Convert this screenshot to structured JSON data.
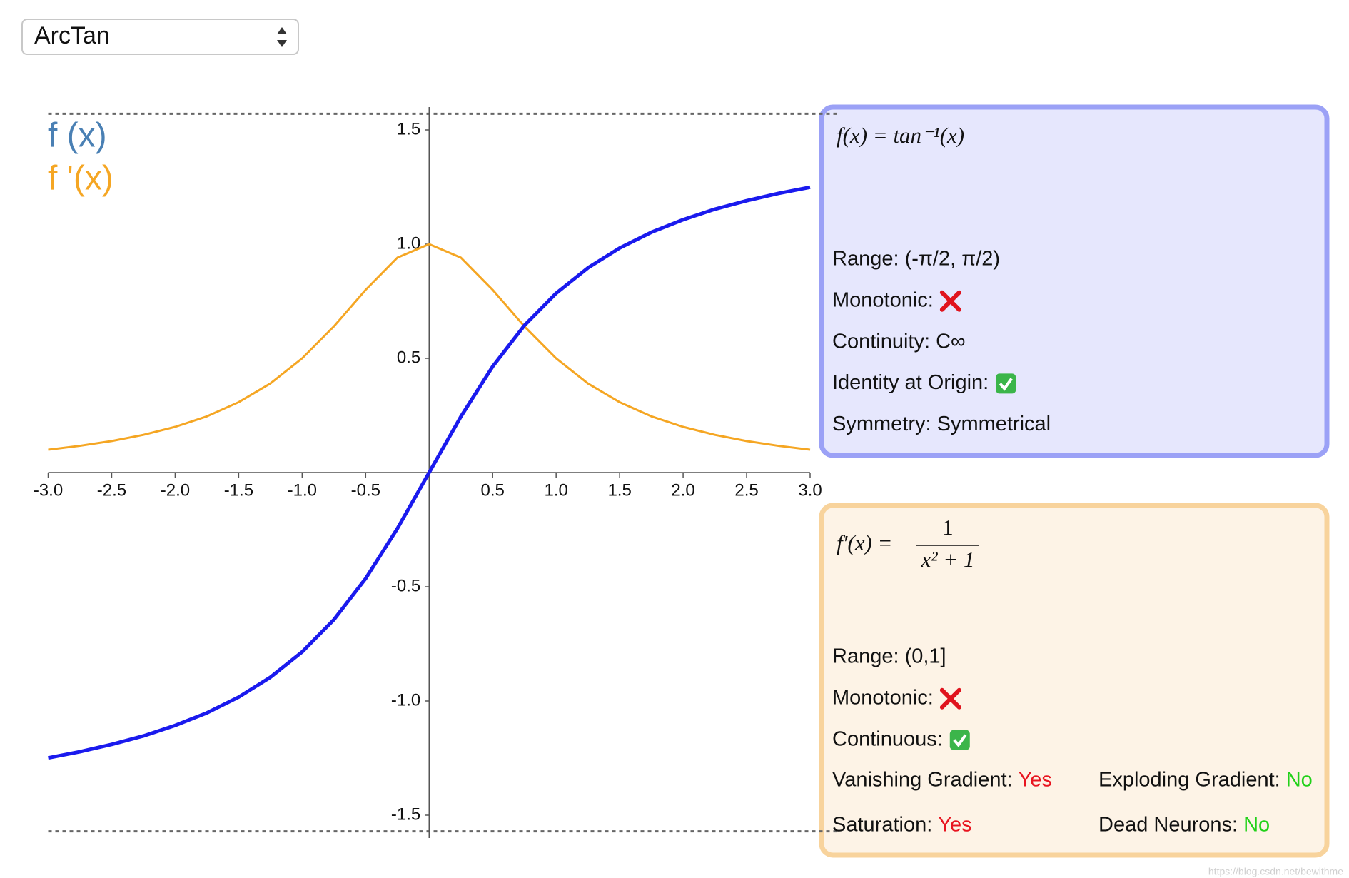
{
  "dropdown": {
    "selected": "ArcTan"
  },
  "chart_data": {
    "type": "line",
    "x": [
      -3,
      -2.75,
      -2.5,
      -2.25,
      -2,
      -1.75,
      -1.5,
      -1.25,
      -1,
      -0.75,
      -0.5,
      -0.25,
      0,
      0.25,
      0.5,
      0.75,
      1,
      1.25,
      1.5,
      1.75,
      2,
      2.25,
      2.5,
      2.75,
      3
    ],
    "series": [
      {
        "name": "f (x)",
        "color": "#1a1aee",
        "label_color": "#4a80b4",
        "width": 5,
        "values": [
          -1.249,
          -1.222,
          -1.19,
          -1.153,
          -1.107,
          -1.052,
          -0.983,
          -0.896,
          -0.785,
          -0.644,
          -0.464,
          -0.245,
          0,
          0.245,
          0.464,
          0.644,
          0.785,
          0.896,
          0.983,
          1.052,
          1.107,
          1.153,
          1.19,
          1.222,
          1.249
        ]
      },
      {
        "name": "f '(x)",
        "color": "#f5a623",
        "label_color": "#f5a623",
        "width": 3,
        "values": [
          0.1,
          0.117,
          0.138,
          0.165,
          0.2,
          0.246,
          0.308,
          0.39,
          0.5,
          0.64,
          0.8,
          0.941,
          1,
          0.941,
          0.8,
          0.64,
          0.5,
          0.39,
          0.308,
          0.246,
          0.2,
          0.165,
          0.138,
          0.117,
          0.1
        ]
      }
    ],
    "xlim": [
      -3,
      3
    ],
    "ylim": [
      -1.6,
      1.6
    ],
    "xticks": [
      {
        "value": -3,
        "label": "-3.0"
      },
      -2.5,
      {
        "value": -2,
        "label": "-2.0"
      },
      -1.5,
      {
        "value": -1,
        "label": "-1.0"
      },
      -0.5,
      0.5,
      {
        "value": 1,
        "label": "1.0"
      },
      1.5,
      {
        "value": 2,
        "label": "2.0"
      },
      2.5,
      {
        "value": 3,
        "label": "3.0"
      }
    ],
    "yticks": [
      1.5,
      {
        "value": 1,
        "label": "1.0"
      },
      0.5,
      -0.5,
      {
        "value": -1,
        "label": "-1.0"
      },
      -1.5
    ],
    "asymptotes": [
      1.5708,
      -1.5708
    ]
  },
  "function_panel": {
    "formula": "f(x) = tan⁻¹(x)",
    "properties": [
      {
        "text": "Range: (-π/2, π/2)"
      },
      {
        "text": "Monotonic:",
        "check": false
      },
      {
        "text": "Continuity: C∞"
      },
      {
        "text": "Identity at Origin:",
        "check": true
      },
      {
        "text": "Symmetry: Symmetrical"
      }
    ]
  },
  "derivative_panel": {
    "lhs": "f′(x) =",
    "numerator": "1",
    "denominator": "x² + 1",
    "properties": [
      {
        "text": "Range: (0,1]"
      },
      {
        "text": "Monotonic:",
        "check": false
      },
      {
        "text": "Continuous:",
        "check": true
      }
    ],
    "pairs": [
      {
        "label": "Vanishing Gradient:",
        "value": "Yes",
        "color": "#e8141f"
      },
      {
        "label": "Exploding Gradient:",
        "value": "No",
        "color": "#22d11a"
      },
      {
        "label": "Saturation:",
        "value": "Yes",
        "color": "#e8141f"
      },
      {
        "label": "Dead Neurons:",
        "value": "No",
        "color": "#22d11a"
      }
    ]
  },
  "watermark": "https://blog.csdn.net/bewithme"
}
